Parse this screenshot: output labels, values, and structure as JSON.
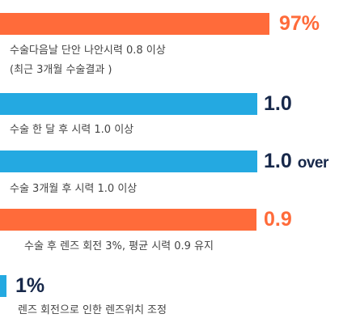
{
  "items": [
    {
      "value": "97%",
      "caption": [
        "수술다음날 단안 나안시력 0.8 이상",
        "(최근 3개월 수술결과 )"
      ]
    },
    {
      "value": "1.0",
      "caption": [
        "수술 한 달 후 시력 1.0 이상"
      ]
    },
    {
      "value": "1.0",
      "suffix": "over",
      "caption": [
        "수술 3개월 후 시력 1.0 이상"
      ]
    },
    {
      "value": "0.9",
      "caption": [
        "수술 후 렌즈 회전 3%, 평균 시력 0.9 유지"
      ]
    },
    {
      "value": "1%",
      "caption": [
        "렌즈 회전으로 인한 렌즈위치 조정"
      ]
    }
  ]
}
